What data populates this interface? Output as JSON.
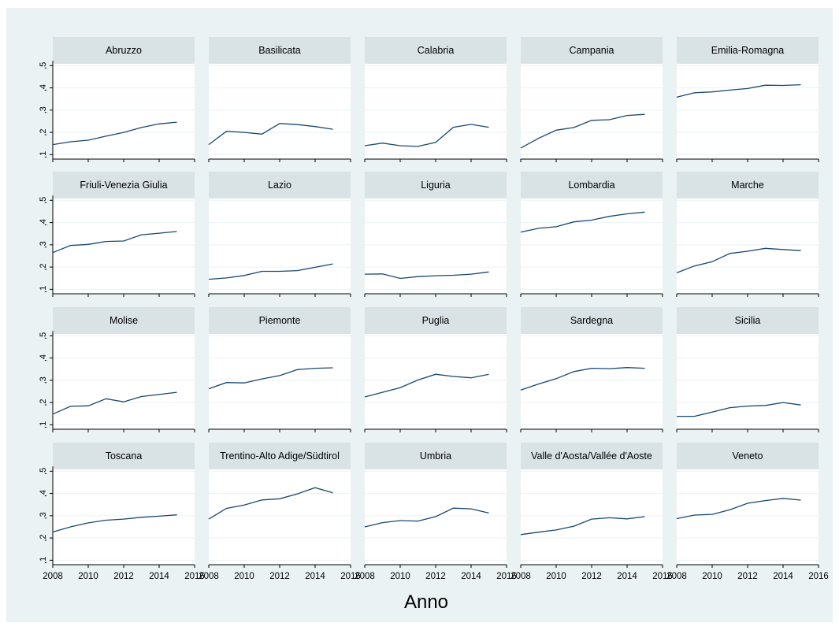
{
  "chart_data": {
    "type": "line",
    "layout": "small-multiples 4x5",
    "xlabel": "Anno",
    "ylabel": "",
    "xlim": [
      2008,
      2016
    ],
    "ylim": [
      0.08,
      0.54
    ],
    "x_ticks": [
      2008,
      2010,
      2012,
      2014,
      2016
    ],
    "x_tick_labels": [
      "2008",
      "2010",
      "2012",
      "2014",
      "2016"
    ],
    "y_ticks": [
      0.1,
      0.2,
      0.3,
      0.4,
      0.5
    ],
    "y_tick_labels": [
      ",1",
      ",2",
      ",3",
      ",4",
      ",5"
    ],
    "grid": true,
    "x": [
      2008,
      2009,
      2010,
      2011,
      2012,
      2013,
      2014,
      2015
    ],
    "series": [
      {
        "name": "Abruzzo",
        "values": [
          0.145,
          0.158,
          0.165,
          0.183,
          0.2,
          0.222,
          0.238,
          0.246
        ]
      },
      {
        "name": "Basilicata",
        "values": [
          0.145,
          0.205,
          0.2,
          0.192,
          0.24,
          0.235,
          0.226,
          0.214
        ]
      },
      {
        "name": "Calabria",
        "values": [
          0.14,
          0.152,
          0.14,
          0.137,
          0.155,
          0.223,
          0.236,
          0.223
        ]
      },
      {
        "name": "Campania",
        "values": [
          0.13,
          0.173,
          0.21,
          0.222,
          0.254,
          0.257,
          0.276,
          0.281
        ]
      },
      {
        "name": "Emilia-Romagna",
        "values": [
          0.358,
          0.378,
          0.382,
          0.39,
          0.397,
          0.412,
          0.411,
          0.414
        ]
      },
      {
        "name": "Friuli-Venezia Giulia",
        "values": [
          0.265,
          0.297,
          0.302,
          0.315,
          0.317,
          0.345,
          0.352,
          0.36
        ]
      },
      {
        "name": "Lazio",
        "values": [
          0.145,
          0.151,
          0.162,
          0.181,
          0.181,
          0.184,
          0.199,
          0.214
        ]
      },
      {
        "name": "Liguria",
        "values": [
          0.168,
          0.169,
          0.149,
          0.157,
          0.161,
          0.163,
          0.168,
          0.178
        ]
      },
      {
        "name": "Lombardia",
        "values": [
          0.357,
          0.374,
          0.381,
          0.403,
          0.411,
          0.428,
          0.439,
          0.447
        ]
      },
      {
        "name": "Marche",
        "values": [
          0.174,
          0.205,
          0.224,
          0.261,
          0.271,
          0.284,
          0.279,
          0.274
        ]
      },
      {
        "name": "Molise",
        "values": [
          0.148,
          0.183,
          0.185,
          0.217,
          0.203,
          0.227,
          0.236,
          0.246
        ]
      },
      {
        "name": "Piemonte",
        "values": [
          0.262,
          0.29,
          0.288,
          0.306,
          0.321,
          0.348,
          0.354,
          0.356
        ]
      },
      {
        "name": "Puglia",
        "values": [
          0.225,
          0.246,
          0.267,
          0.301,
          0.327,
          0.317,
          0.311,
          0.327
        ]
      },
      {
        "name": "Sardegna",
        "values": [
          0.256,
          0.283,
          0.307,
          0.339,
          0.354,
          0.352,
          0.357,
          0.354
        ]
      },
      {
        "name": "Sicilia",
        "values": [
          0.138,
          0.138,
          0.157,
          0.177,
          0.184,
          0.187,
          0.2,
          0.189
        ]
      },
      {
        "name": "Toscana",
        "values": [
          0.227,
          0.25,
          0.268,
          0.28,
          0.285,
          0.293,
          0.298,
          0.304
        ]
      },
      {
        "name": "Trentino-Alto Adige/Südtirol",
        "values": [
          0.285,
          0.333,
          0.348,
          0.371,
          0.376,
          0.398,
          0.426,
          0.403
        ]
      },
      {
        "name": "Umbria",
        "values": [
          0.25,
          0.269,
          0.278,
          0.276,
          0.296,
          0.334,
          0.331,
          0.312
        ]
      },
      {
        "name": "Valle d'Aosta/Vallée d'Aoste",
        "values": [
          0.215,
          0.226,
          0.236,
          0.253,
          0.285,
          0.291,
          0.286,
          0.296
        ]
      },
      {
        "name": "Veneto",
        "values": [
          0.287,
          0.303,
          0.306,
          0.327,
          0.356,
          0.368,
          0.378,
          0.37
        ]
      }
    ]
  },
  "colors": {
    "outer_background": "#eaf2f3",
    "plot_background": "#ffffff",
    "strip_background": "#d9e3e6",
    "line": "#1a476f",
    "grid": "#eaf2f3",
    "axis": "#000000",
    "text": "#000000"
  }
}
